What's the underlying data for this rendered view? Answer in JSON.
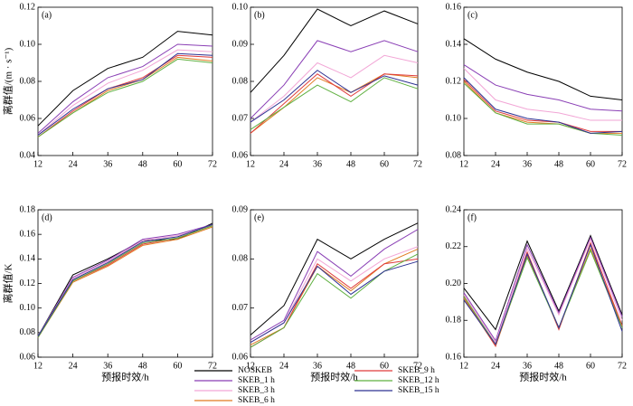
{
  "legend": [
    {
      "name": "NOSKEB",
      "color": "#000000"
    },
    {
      "name": "SKEB_1 h",
      "color": "#8a3fb5"
    },
    {
      "name": "SKEB_3 h",
      "color": "#f2a6d6"
    },
    {
      "name": "SKEB_6 h",
      "color": "#e07a20"
    },
    {
      "name": "SKEB_9 h",
      "color": "#e03c3c"
    },
    {
      "name": "SKEB_12 h",
      "color": "#5fb040"
    },
    {
      "name": "SKEB_15 h",
      "color": "#2e3192"
    }
  ],
  "chart_data": [
    {
      "type": "line",
      "title": "(a)",
      "ylabel": "离群值/(m · s⁻¹)",
      "x": [
        12,
        24,
        36,
        48,
        60,
        72
      ],
      "xlim": [
        12,
        72
      ],
      "xticks": [
        12,
        24,
        36,
        48,
        60,
        72
      ],
      "ylim": [
        0.04,
        0.12
      ],
      "yticks": [
        0.04,
        0.06,
        0.08,
        {
          "value": 0.1,
          "label": "0.10"
        },
        0.12
      ],
      "series": [
        {
          "values": [
            0.056,
            0.075,
            0.087,
            0.093,
            0.107,
            0.105
          ]
        },
        {
          "values": [
            0.052,
            0.069,
            0.082,
            0.088,
            0.1,
            0.099
          ]
        },
        {
          "values": [
            0.051,
            0.067,
            0.079,
            0.086,
            0.097,
            0.096
          ]
        },
        {
          "values": [
            0.05,
            0.063,
            0.075,
            0.081,
            0.093,
            0.091
          ]
        },
        {
          "values": [
            0.05,
            0.064,
            0.076,
            0.082,
            0.094,
            0.093
          ]
        },
        {
          "values": [
            0.05,
            0.063,
            0.074,
            0.08,
            0.092,
            0.09
          ]
        },
        {
          "values": [
            0.051,
            0.065,
            0.076,
            0.081,
            0.095,
            0.094
          ]
        }
      ]
    },
    {
      "type": "line",
      "title": "(b)",
      "x": [
        12,
        24,
        36,
        48,
        60,
        72
      ],
      "xlim": [
        12,
        72
      ],
      "xticks": [
        12,
        24,
        36,
        48,
        60,
        72
      ],
      "ylim": [
        0.06,
        0.1
      ],
      "yticks": [
        0.06,
        0.07,
        0.08,
        0.09,
        {
          "value": 0.1,
          "label": "0.10"
        }
      ],
      "series": [
        {
          "values": [
            0.077,
            0.087,
            0.0995,
            0.095,
            0.099,
            0.0955
          ]
        },
        {
          "values": [
            0.07,
            0.079,
            0.091,
            0.088,
            0.091,
            0.088
          ]
        },
        {
          "values": [
            0.069,
            0.076,
            0.085,
            0.081,
            0.087,
            0.085
          ]
        },
        {
          "values": [
            0.066,
            0.073,
            0.081,
            0.077,
            0.082,
            0.081
          ]
        },
        {
          "values": [
            0.066,
            0.074,
            0.082,
            0.076,
            0.082,
            0.0815
          ]
        },
        {
          "values": [
            0.067,
            0.073,
            0.079,
            0.0745,
            0.081,
            0.078
          ]
        },
        {
          "values": [
            0.069,
            0.075,
            0.083,
            0.077,
            0.0815,
            0.079
          ]
        }
      ]
    },
    {
      "type": "line",
      "title": "(c)",
      "x": [
        12,
        24,
        36,
        48,
        60,
        72
      ],
      "xlim": [
        12,
        72
      ],
      "xticks": [
        12,
        24,
        36,
        48,
        60,
        72
      ],
      "ylim": [
        0.08,
        0.16
      ],
      "yticks": [
        0.08,
        {
          "value": 0.1,
          "label": "0.10"
        },
        0.12,
        0.14,
        0.16
      ],
      "series": [
        {
          "values": [
            0.143,
            0.132,
            0.125,
            0.12,
            0.112,
            0.11
          ]
        },
        {
          "values": [
            0.129,
            0.118,
            0.113,
            0.11,
            0.105,
            0.104
          ]
        },
        {
          "values": [
            0.127,
            0.11,
            0.105,
            0.103,
            0.099,
            0.099
          ]
        },
        {
          "values": [
            0.12,
            0.103,
            0.098,
            0.097,
            0.092,
            0.092
          ]
        },
        {
          "values": [
            0.121,
            0.104,
            0.099,
            0.098,
            0.093,
            0.093
          ]
        },
        {
          "values": [
            0.119,
            0.103,
            0.097,
            0.097,
            0.092,
            0.091
          ]
        },
        {
          "values": [
            0.122,
            0.105,
            0.1,
            0.098,
            0.092,
            0.093
          ]
        }
      ]
    },
    {
      "type": "line",
      "title": "(d)",
      "ylabel": "离群值/K",
      "xlabel": "预报时效/h",
      "x": [
        12,
        24,
        36,
        48,
        60,
        72
      ],
      "xlim": [
        12,
        72
      ],
      "xticks": [
        12,
        24,
        36,
        48,
        60,
        72
      ],
      "ylim": [
        0.06,
        0.18
      ],
      "yticks": [
        0.06,
        0.08,
        {
          "value": 0.1,
          "label": "0.10"
        },
        0.12,
        0.14,
        0.16,
        0.18
      ],
      "series": [
        {
          "values": [
            0.077,
            0.127,
            0.14,
            0.155,
            0.156,
            0.169
          ]
        },
        {
          "values": [
            0.077,
            0.125,
            0.139,
            0.156,
            0.16,
            0.168
          ]
        },
        {
          "values": [
            0.077,
            0.124,
            0.138,
            0.155,
            0.159,
            0.167
          ]
        },
        {
          "values": [
            0.076,
            0.121,
            0.134,
            0.151,
            0.156,
            0.166
          ]
        },
        {
          "values": [
            0.076,
            0.122,
            0.135,
            0.152,
            0.157,
            0.167
          ]
        },
        {
          "values": [
            0.076,
            0.122,
            0.136,
            0.153,
            0.157,
            0.167
          ]
        },
        {
          "values": [
            0.077,
            0.123,
            0.137,
            0.154,
            0.158,
            0.168
          ]
        }
      ]
    },
    {
      "type": "line",
      "title": "(e)",
      "xlabel": "预报时效/h",
      "x": [
        12,
        24,
        36,
        48,
        60,
        72
      ],
      "xlim": [
        12,
        72
      ],
      "xticks": [
        12,
        24,
        36,
        48,
        60,
        72
      ],
      "ylim": [
        0.06,
        0.09
      ],
      "yticks": [
        0.06,
        0.07,
        0.08,
        0.09
      ],
      "series": [
        {
          "values": [
            0.0645,
            0.0705,
            0.084,
            0.08,
            0.084,
            0.0873
          ]
        },
        {
          "values": [
            0.0635,
            0.0675,
            0.0815,
            0.0765,
            0.082,
            0.086
          ]
        },
        {
          "values": [
            0.063,
            0.067,
            0.08,
            0.0755,
            0.08,
            0.0825
          ]
        },
        {
          "values": [
            0.0625,
            0.066,
            0.0785,
            0.0735,
            0.079,
            0.082
          ]
        },
        {
          "values": [
            0.062,
            0.066,
            0.079,
            0.074,
            0.079,
            0.08
          ]
        },
        {
          "values": [
            0.062,
            0.066,
            0.077,
            0.072,
            0.0775,
            0.081
          ]
        },
        {
          "values": [
            0.063,
            0.067,
            0.0785,
            0.0728,
            0.0775,
            0.0795
          ]
        }
      ]
    },
    {
      "type": "line",
      "title": "(f)",
      "xlabel": "预报时效/h",
      "x": [
        12,
        24,
        36,
        48,
        60,
        72
      ],
      "xlim": [
        12,
        72
      ],
      "xticks": [
        12,
        24,
        36,
        48,
        60,
        72
      ],
      "ylim": [
        0.16,
        0.24
      ],
      "yticks": [
        0.16,
        0.18,
        {
          "value": 0.2,
          "label": "0.20"
        },
        0.22,
        0.24
      ],
      "series": [
        {
          "values": [
            0.1975,
            0.175,
            0.223,
            0.185,
            0.226,
            0.183
          ]
        },
        {
          "values": [
            0.195,
            0.169,
            0.221,
            0.184,
            0.225,
            0.182
          ]
        },
        {
          "values": [
            0.194,
            0.168,
            0.219,
            0.183,
            0.224,
            0.18
          ]
        },
        {
          "values": [
            0.192,
            0.166,
            0.215,
            0.176,
            0.219,
            0.177
          ]
        },
        {
          "values": [
            0.193,
            0.166,
            0.217,
            0.175,
            0.222,
            0.177
          ]
        },
        {
          "values": [
            0.193,
            0.167,
            0.214,
            0.176,
            0.218,
            0.176
          ]
        },
        {
          "values": [
            0.191,
            0.167,
            0.216,
            0.176,
            0.221,
            0.174
          ]
        }
      ]
    }
  ]
}
